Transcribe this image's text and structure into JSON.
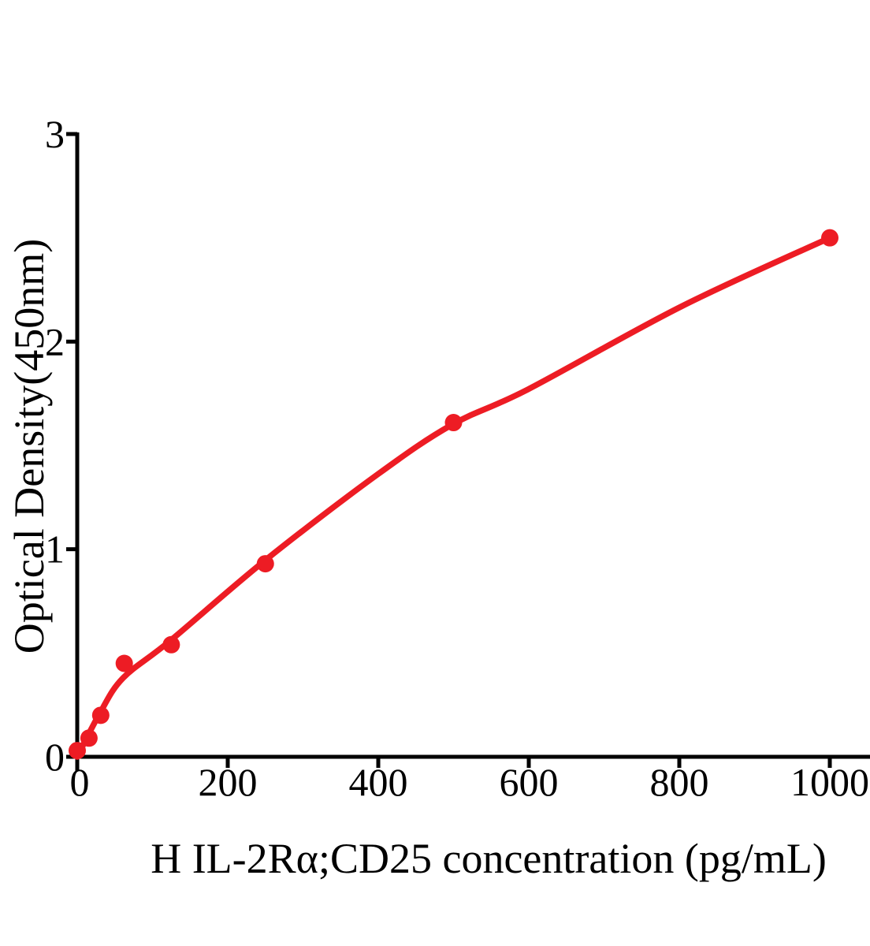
{
  "figure": {
    "background": "#ffffff",
    "text_color": "#000000"
  },
  "chart_data": {
    "type": "scatter",
    "title": "",
    "xlabel": "H IL-2Rα;CD25 concentration (pg/mL)",
    "ylabel": "Optical Density(450nm)",
    "xlim": [
      0,
      1055
    ],
    "ylim": [
      0,
      3
    ],
    "x_ticks": [
      0,
      200,
      400,
      600,
      800,
      1000
    ],
    "y_ticks": [
      0,
      1,
      2,
      3
    ],
    "grid": false,
    "legend": null,
    "axis_color": "#000000",
    "accent_color": "#ed1c24",
    "series": [
      {
        "name": "standard-curve-fit",
        "type": "line",
        "color": "#ed1c24",
        "stroke_width": 7.5,
        "points": [
          {
            "x": 0,
            "y": 0
          },
          {
            "x": 30,
            "y": 0.21
          },
          {
            "x": 61,
            "y": 0.38
          },
          {
            "x": 124,
            "y": 0.56
          },
          {
            "x": 251,
            "y": 0.95
          },
          {
            "x": 399,
            "y": 1.36
          },
          {
            "x": 498,
            "y": 1.6
          },
          {
            "x": 599,
            "y": 1.77
          },
          {
            "x": 803,
            "y": 2.17
          },
          {
            "x": 1000,
            "y": 2.5
          }
        ]
      },
      {
        "name": "standard-points",
        "type": "scatter",
        "color": "#ed1c24",
        "marker": "circle",
        "marker_radius": 11,
        "points": [
          {
            "x": 0,
            "y": 0.03
          },
          {
            "x": 15.6,
            "y": 0.09
          },
          {
            "x": 31.25,
            "y": 0.2
          },
          {
            "x": 62.5,
            "y": 0.45
          },
          {
            "x": 125,
            "y": 0.54
          },
          {
            "x": 250,
            "y": 0.93
          },
          {
            "x": 500,
            "y": 1.61
          },
          {
            "x": 1000,
            "y": 2.5
          }
        ]
      }
    ]
  }
}
